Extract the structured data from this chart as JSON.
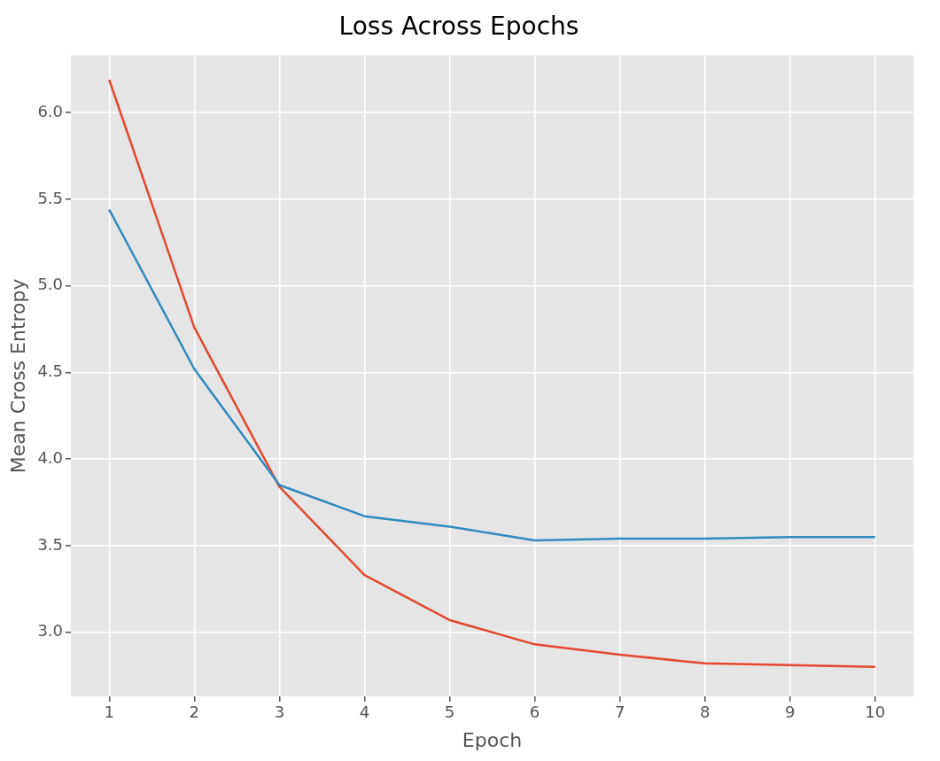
{
  "chart_data": {
    "type": "line",
    "title": "Loss Across Epochs",
    "xlabel": "Epoch",
    "ylabel": "Mean Cross Entropy",
    "x": [
      1,
      2,
      3,
      4,
      5,
      6,
      7,
      8,
      9,
      10
    ],
    "series": [
      {
        "color": "#348abd",
        "values": [
          5.44,
          4.52,
          3.85,
          3.67,
          3.61,
          3.53,
          3.54,
          3.54,
          3.55,
          3.55
        ]
      },
      {
        "color": "#e24a33",
        "values": [
          6.19,
          4.76,
          3.84,
          3.33,
          3.07,
          2.93,
          2.87,
          2.82,
          2.81,
          2.8
        ]
      }
    ],
    "xlim": [
      0.55,
      10.45
    ],
    "xticks": [
      1,
      2,
      3,
      4,
      5,
      6,
      7,
      8,
      9,
      10
    ],
    "ylim": [
      2.63,
      6.33
    ],
    "yticks": [
      {
        "value": 3,
        "label": "3.0"
      },
      {
        "value": 3.5,
        "label": "3.5"
      },
      {
        "value": 4,
        "label": "4.0"
      },
      {
        "value": 4.5,
        "label": "4.5"
      },
      {
        "value": 5,
        "label": "5.0"
      },
      {
        "value": 5.5,
        "label": "5.5"
      },
      {
        "value": 6,
        "label": "6.0"
      }
    ],
    "grid": true,
    "marker": "none",
    "line_style": "solid",
    "legend": false
  }
}
